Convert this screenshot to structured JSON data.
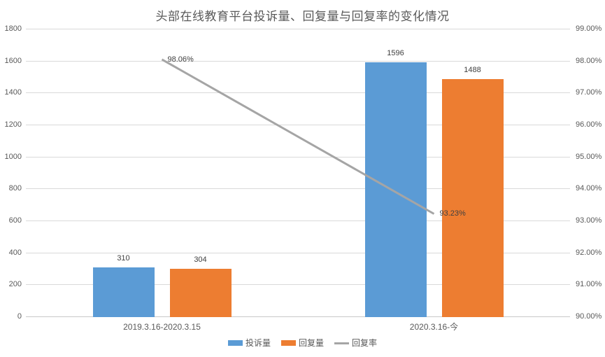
{
  "title": "头部在线教育平台投诉量、回复量与回复率的变化情况",
  "chart_data": {
    "type": "bar",
    "title": "头部在线教育平台投诉量、回复量与回复率的变化情况",
    "categories": [
      "2019.3.16-2020.3.15",
      "2020.3.16-今"
    ],
    "series": [
      {
        "name": "投诉量",
        "type": "bar",
        "axis": "left",
        "color": "#5B9BD5",
        "values": [
          310,
          1596
        ],
        "labels": [
          "310",
          "1596"
        ]
      },
      {
        "name": "回复量",
        "type": "bar",
        "axis": "left",
        "color": "#ED7D31",
        "values": [
          304,
          1488
        ],
        "labels": [
          "304",
          "1488"
        ]
      },
      {
        "name": "回复率",
        "type": "line",
        "axis": "right",
        "color": "#A5A5A5",
        "values": [
          98.06,
          93.23
        ],
        "labels": [
          "98.06%",
          "93.23%"
        ]
      }
    ],
    "left_axis": {
      "min": 0,
      "max": 1800,
      "step": 200,
      "ticks": [
        "0",
        "200",
        "400",
        "600",
        "800",
        "1000",
        "1200",
        "1400",
        "1600",
        "1800"
      ]
    },
    "right_axis": {
      "min": 90,
      "max": 99,
      "step": 1,
      "ticks": [
        "90.00%",
        "91.00%",
        "92.00%",
        "93.00%",
        "94.00%",
        "95.00%",
        "96.00%",
        "97.00%",
        "98.00%",
        "99.00%"
      ]
    },
    "legend": [
      {
        "label": "投诉量",
        "marker": "rect",
        "color": "#5B9BD5"
      },
      {
        "label": "回复量",
        "marker": "rect",
        "color": "#ED7D31"
      },
      {
        "label": "回复率",
        "marker": "line",
        "color": "#A5A5A5"
      }
    ],
    "legend_position": "bottom",
    "grid": true,
    "colors": {
      "background": "#FFFFFF",
      "gridline": "#D9D9D9",
      "axis_line": "#C9C9C9",
      "tick_text": "#595959",
      "title_text": "#595959",
      "data_label_text": "#404040"
    }
  }
}
